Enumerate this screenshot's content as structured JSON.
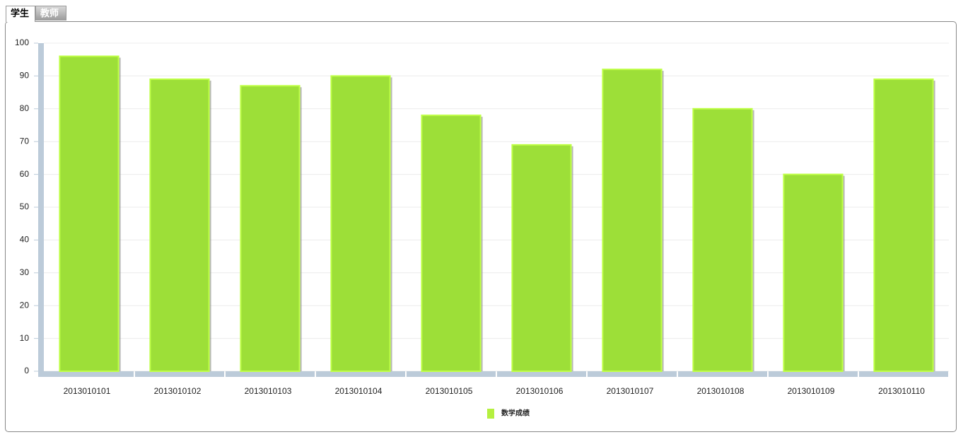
{
  "tabs": [
    "学生",
    "教师"
  ],
  "chart_data": {
    "type": "bar",
    "categories": [
      "2013010101",
      "2013010102",
      "2013010103",
      "2013010104",
      "2013010105",
      "2013010106",
      "2013010107",
      "2013010108",
      "2013010109",
      "2013010110"
    ],
    "series": [
      {
        "name": "数学成绩",
        "color": "#9ddf38",
        "values": [
          96,
          89,
          87,
          90,
          78,
          69,
          92,
          80,
          60,
          89
        ]
      }
    ],
    "ylim": [
      0,
      100
    ],
    "yticks": [
      0,
      10,
      20,
      30,
      40,
      50,
      60,
      70,
      80,
      90,
      100
    ],
    "grid": true,
    "legend": "bottom"
  }
}
